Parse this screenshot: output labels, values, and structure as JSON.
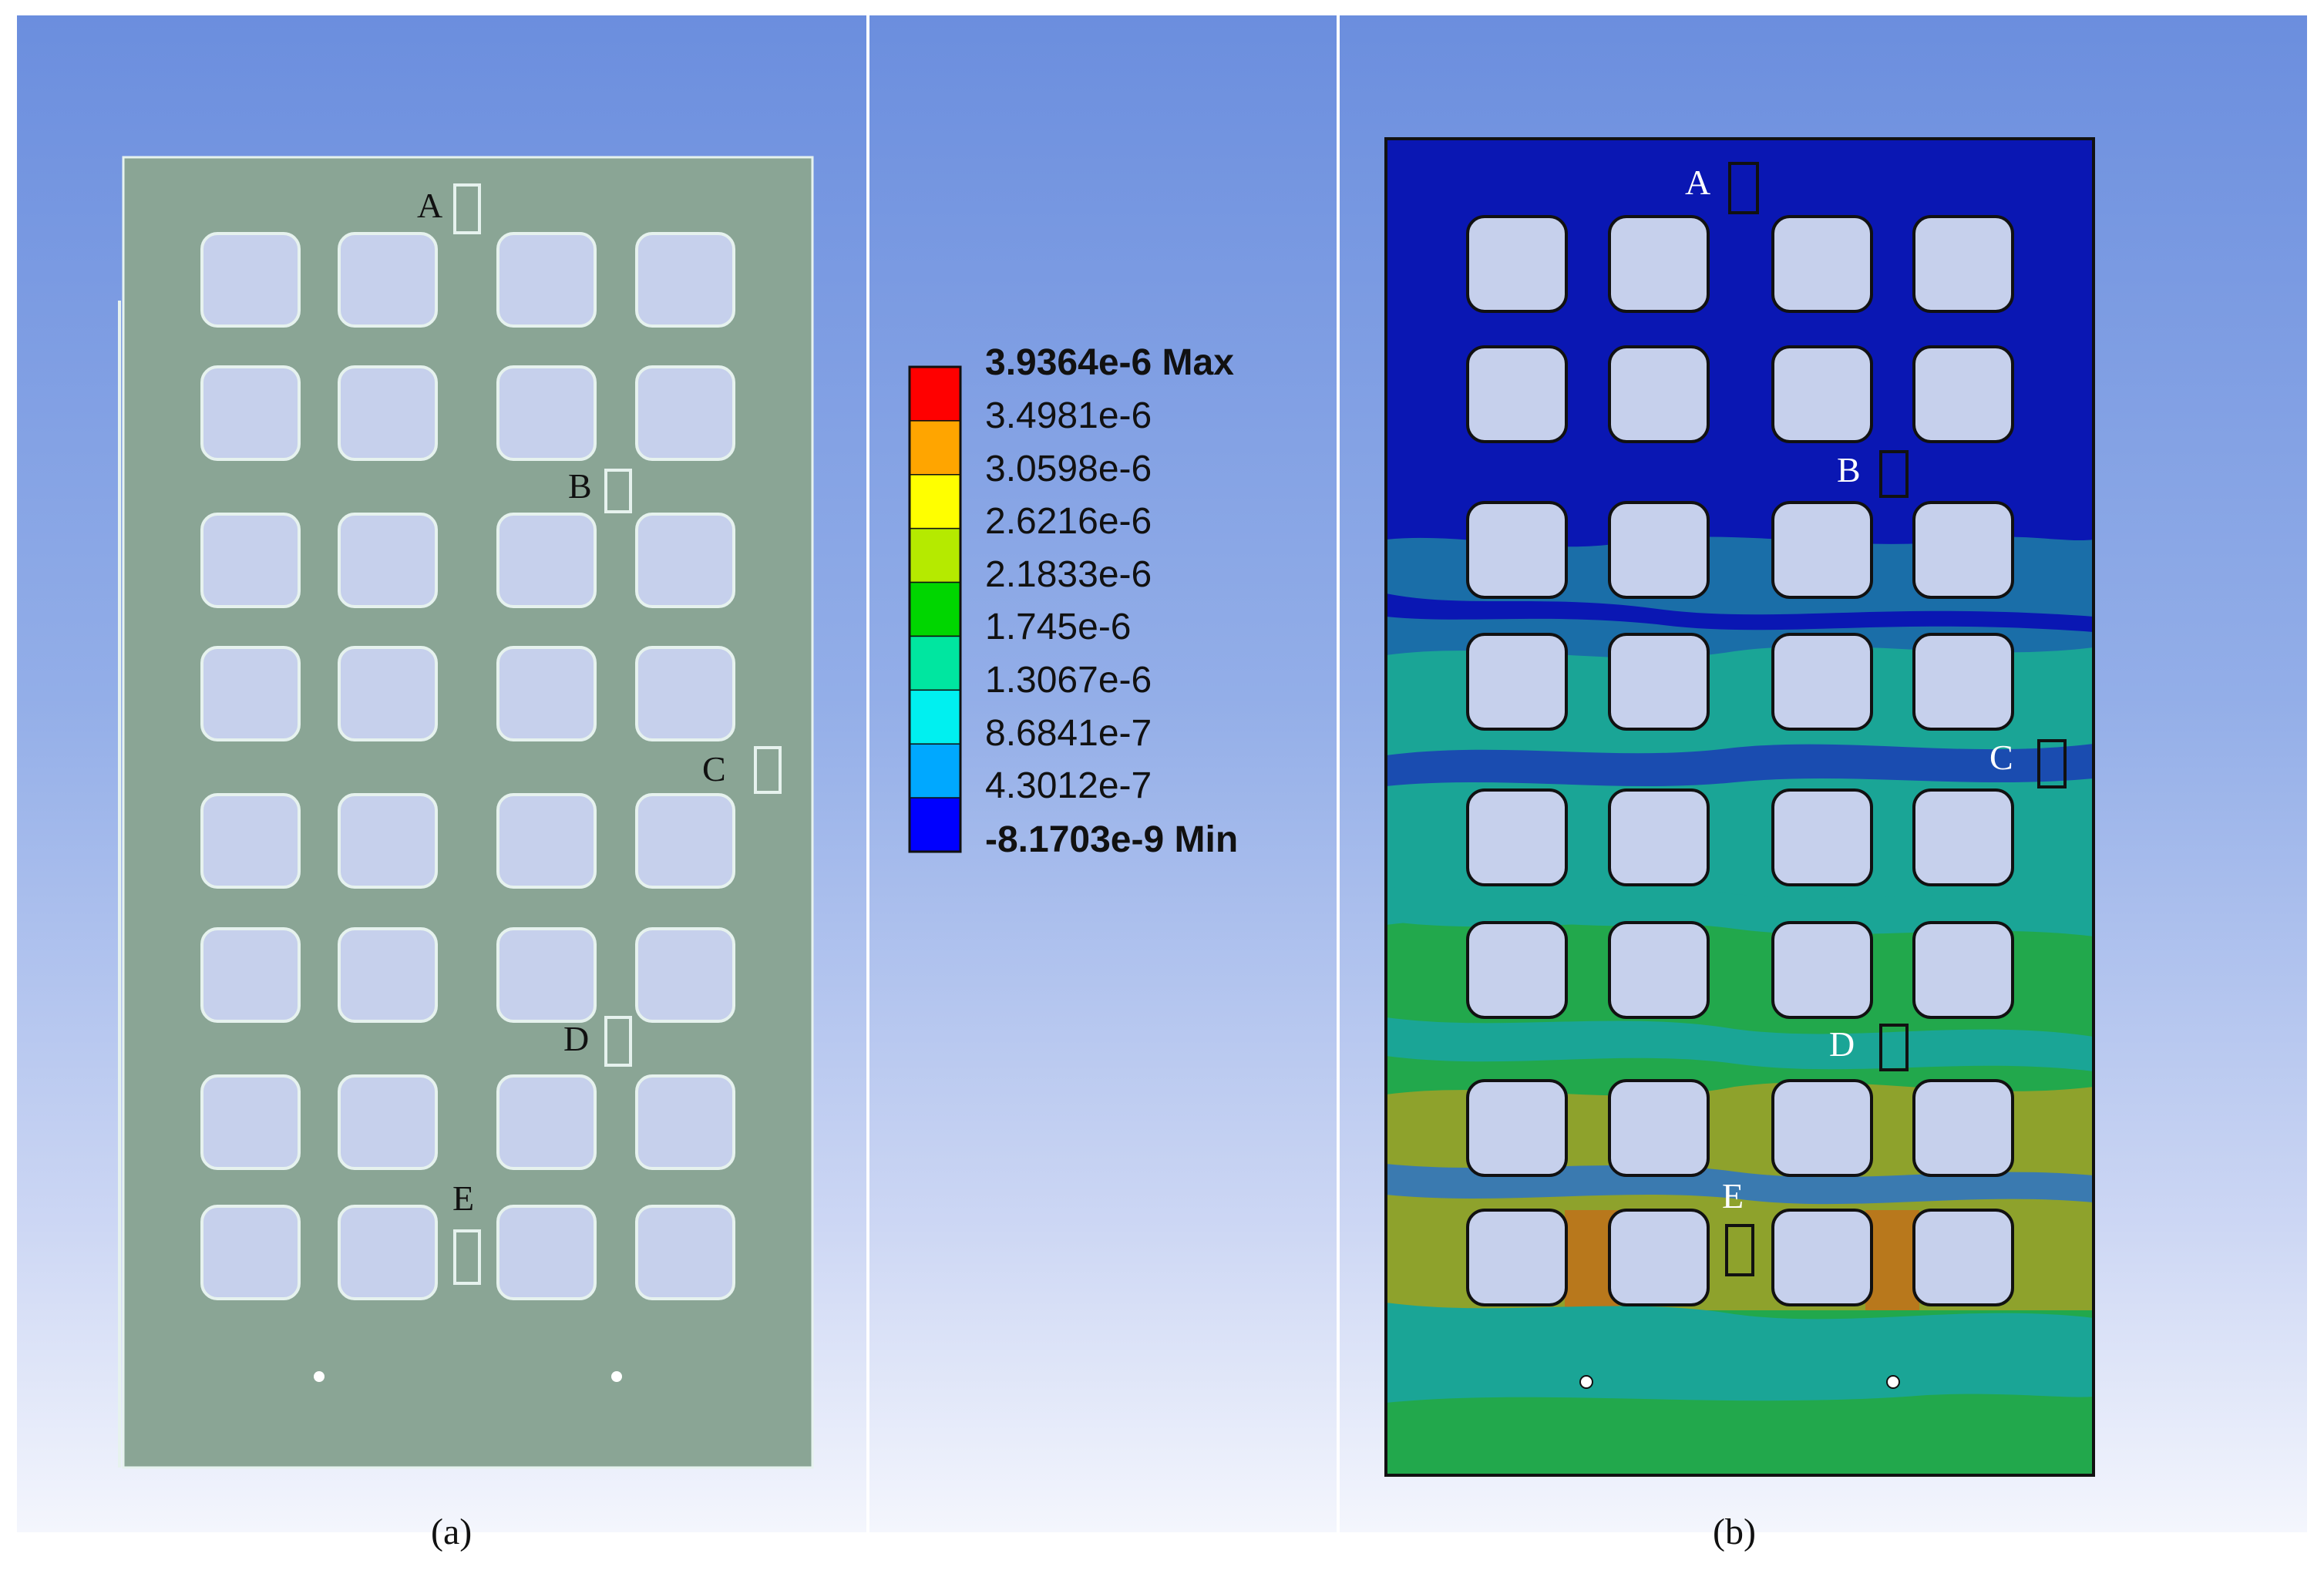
{
  "panels": {
    "left": {
      "caption": "(a)",
      "points": [
        {
          "id": "A",
          "label": "A"
        },
        {
          "id": "B",
          "label": "B"
        },
        {
          "id": "C",
          "label": "C"
        },
        {
          "id": "D",
          "label": "D"
        },
        {
          "id": "E",
          "label": "E"
        }
      ]
    },
    "right": {
      "caption": "(b)",
      "points": [
        {
          "id": "A",
          "label": "A"
        },
        {
          "id": "B",
          "label": "B"
        },
        {
          "id": "C",
          "label": "C"
        },
        {
          "id": "D",
          "label": "D"
        },
        {
          "id": "E",
          "label": "E"
        }
      ]
    }
  },
  "legend": {
    "max_value": "3.9364e-6",
    "max_suffix": "Max",
    "min_value": "-8.1703e-9",
    "min_suffix": "Min",
    "levels": [
      "3.4981e-6",
      "3.0598e-6",
      "2.6216e-6",
      "2.1833e-6",
      "1.745e-6",
      "1.3067e-6",
      "8.6841e-7",
      "4.3012e-7"
    ],
    "colors": [
      "#ff0000",
      "#ffa500",
      "#ffff00",
      "#b5ea00",
      "#00d600",
      "#00e6a0",
      "#00f0f0",
      "#00a8ff",
      "#0000ff"
    ]
  },
  "colors": {
    "plate_gray": "#8aa595",
    "plate_outline": "#e6f2ee",
    "hole_fill": "#c6d0ec",
    "contour_deep_blue": "#0a17b3",
    "contour_steel": "#1a6ea8",
    "contour_teal": "#1aa596",
    "contour_green": "#22a84c",
    "contour_olive": "#8ea22c",
    "contour_orange": "#b8781c"
  }
}
